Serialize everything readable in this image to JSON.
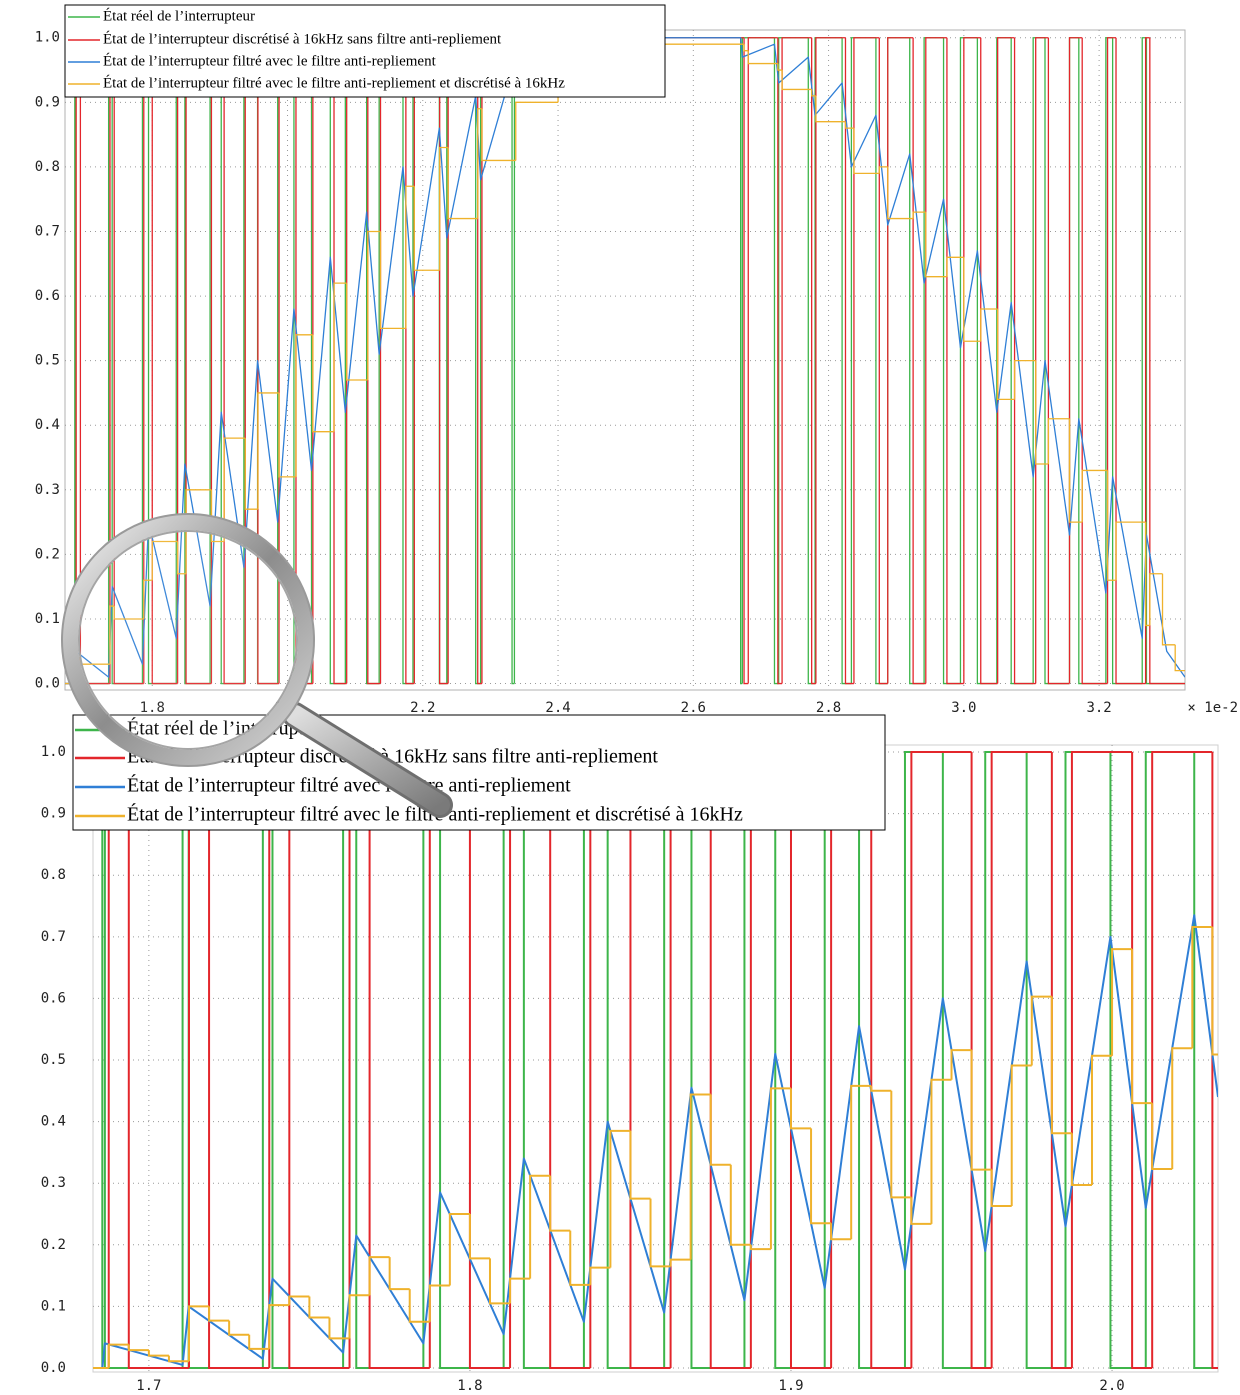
{
  "chart_data": [
    {
      "type": "line",
      "xlim": [
        1.671,
        3.327
      ],
      "xticks": [
        1.8,
        {
          "value": 2,
          "label": "2.0"
        },
        2.2,
        2.4,
        2.6,
        2.8,
        {
          "value": 3,
          "label": "3.0"
        },
        3.2
      ],
      "x_offset_label": "× 1e-2",
      "ylim": [
        -0.01,
        1.012
      ],
      "yticks": [
        {
          "value": 0,
          "label": "0.0"
        },
        0.1,
        0.2,
        0.3,
        0.4,
        0.5,
        0.6,
        0.7,
        0.8,
        0.9,
        {
          "value": 1,
          "label": "1.0"
        }
      ],
      "grid": true,
      "legend": "upper left",
      "series": [
        {
          "name": "État réel de l’interrupteur",
          "color": "#3db54a",
          "drawstyle": "steps-post",
          "x": [
            1.671,
            1.6855,
            1.687,
            1.7355,
            1.74075,
            1.7855,
            1.7945,
            1.8355,
            1.84825,
            1.8855,
            1.902,
            1.9355,
            1.95575,
            1.9855,
            2.0095,
            2.0355,
            2.06325,
            2.0855,
            2.117,
            2.1355,
            2.17075,
            2.1855,
            2.2245,
            2.2355,
            2.27825,
            2.2855,
            2.332,
            2.3355,
            2.67,
            2.6725,
            2.72,
            2.72625,
            2.77,
            2.78,
            2.82,
            2.83375,
            2.87,
            2.8875,
            2.92,
            2.94125,
            2.97,
            2.995,
            3.02,
            3.04875,
            3.07,
            3.1025,
            3.12,
            3.15625,
            3.17,
            3.21,
            3.22,
            3.26375,
            3.27
          ],
          "values": [
            0,
            1,
            0,
            1,
            0,
            1,
            0,
            1,
            0,
            1,
            0,
            1,
            0,
            1,
            0,
            1,
            0,
            1,
            0,
            1,
            0,
            1,
            0,
            1,
            0,
            1,
            0,
            1,
            0,
            1,
            0,
            1,
            0,
            1,
            0,
            1,
            0,
            1,
            0,
            1,
            0,
            1,
            0,
            1,
            0,
            1,
            0,
            1,
            0,
            1,
            0,
            1,
            0
          ]
        },
        {
          "name": "État de l’interrupteur discrétisé à 16kHz sans filtre anti-repliement",
          "color": "#e3262b",
          "drawstyle": "steps-post",
          "x": [
            1.671,
            1.6875,
            1.69375,
            1.7375,
            1.74375,
            1.7875,
            1.8,
            1.8375,
            1.85,
            1.8875,
            1.90625,
            1.9375,
            1.95625,
            1.9875,
            2.0125,
            2.0375,
            2.06875,
            2.0875,
            2.11875,
            2.1375,
            2.175,
            2.1875,
            2.225,
            2.2375,
            2.28125,
            2.2875,
            2.675,
            2.68125,
            2.725,
            2.73125,
            2.775,
            2.78125,
            2.825,
            2.8375,
            2.875,
            2.8875,
            2.925,
            2.94375,
            2.975,
            3.0,
            3.025,
            3.05,
            3.075,
            3.10625,
            3.125,
            3.15625,
            3.175,
            3.2125,
            3.225,
            3.26875,
            3.275
          ],
          "values": [
            0,
            1,
            0,
            1,
            0,
            1,
            0,
            1,
            0,
            1,
            0,
            1,
            0,
            1,
            0,
            1,
            0,
            1,
            0,
            1,
            0,
            1,
            0,
            1,
            0,
            1,
            0,
            1,
            0,
            1,
            0,
            1,
            0,
            1,
            0,
            1,
            0,
            1,
            0,
            1,
            0,
            1,
            0,
            1,
            0,
            1,
            0,
            1,
            0,
            1,
            0
          ]
        },
        {
          "name": "État de l’interrupteur filtré avec le filtre anti-repliement",
          "color": "#2f7fd6",
          "x": [
            1.671,
            1.6855,
            1.687,
            1.7355,
            1.74075,
            1.7855,
            1.7945,
            1.8355,
            1.84825,
            1.8855,
            1.902,
            1.9355,
            1.95575,
            1.9855,
            2.0095,
            2.0355,
            2.06325,
            2.0855,
            2.117,
            2.1355,
            2.17075,
            2.1855,
            2.2245,
            2.2355,
            2.27825,
            2.2855,
            2.332,
            2.3355,
            2.45,
            2.67,
            2.6725,
            2.72,
            2.72625,
            2.77,
            2.78,
            2.82,
            2.83375,
            2.87,
            2.8875,
            2.92,
            2.94125,
            2.97,
            2.995,
            3.02,
            3.04875,
            3.07,
            3.1025,
            3.12,
            3.15625,
            3.17,
            3.21,
            3.22,
            3.26375,
            3.27,
            3.3,
            3.327
          ],
          "values": [
            0,
            0,
            0.05,
            0.01,
            0.15,
            0.03,
            0.25,
            0.07,
            0.34,
            0.12,
            0.42,
            0.18,
            0.5,
            0.25,
            0.58,
            0.33,
            0.66,
            0.42,
            0.73,
            0.51,
            0.8,
            0.6,
            0.86,
            0.69,
            0.91,
            0.78,
            0.95,
            0.94,
            1,
            1,
            0.97,
            0.99,
            0.93,
            0.97,
            0.88,
            0.93,
            0.8,
            0.88,
            0.71,
            0.82,
            0.62,
            0.75,
            0.52,
            0.67,
            0.42,
            0.59,
            0.32,
            0.5,
            0.23,
            0.41,
            0.14,
            0.32,
            0.07,
            0.23,
            0.05,
            0.01
          ]
        },
        {
          "name": "État de l’interrupteur filtré avec le filtre anti-repliement et discrétisé à 16kHz",
          "color": "#efb22c",
          "drawstyle": "steps-post",
          "x": [
            1.671,
            1.6875,
            1.69375,
            1.7375,
            1.74375,
            1.7875,
            1.8,
            1.8375,
            1.85,
            1.8875,
            1.90625,
            1.9375,
            1.95625,
            1.9875,
            2.0125,
            2.0375,
            2.06875,
            2.0875,
            2.11875,
            2.1375,
            2.175,
            2.1875,
            2.225,
            2.2375,
            2.28125,
            2.2875,
            2.3375,
            2.4,
            2.675,
            2.68125,
            2.725,
            2.73125,
            2.775,
            2.78125,
            2.825,
            2.8375,
            2.875,
            2.8875,
            2.925,
            2.94375,
            2.975,
            3.0,
            3.025,
            3.05,
            3.075,
            3.10625,
            3.125,
            3.15625,
            3.175,
            3.2125,
            3.225,
            3.26875,
            3.275,
            3.29375,
            3.3125
          ],
          "values": [
            0,
            0.04,
            0.03,
            0.12,
            0.1,
            0.16,
            0.22,
            0.17,
            0.3,
            0.22,
            0.38,
            0.27,
            0.45,
            0.32,
            0.54,
            0.39,
            0.62,
            0.47,
            0.7,
            0.55,
            0.77,
            0.64,
            0.83,
            0.72,
            0.89,
            0.81,
            0.9,
            0.99,
            0.98,
            0.96,
            0.95,
            0.92,
            0.91,
            0.87,
            0.86,
            0.79,
            0.8,
            0.72,
            0.73,
            0.63,
            0.66,
            0.53,
            0.58,
            0.44,
            0.5,
            0.34,
            0.41,
            0.25,
            0.33,
            0.16,
            0.25,
            0.09,
            0.17,
            0.06,
            0.02
          ]
        }
      ]
    },
    {
      "type": "line",
      "xlim": [
        1.6826,
        2.033
      ],
      "xticks": [
        1.7,
        1.8,
        1.9,
        {
          "value": 2,
          "label": "2.0"
        }
      ],
      "ylim": [
        -0.0065,
        1.0114
      ],
      "yticks": [
        {
          "value": 0,
          "label": "0.0"
        },
        0.1,
        0.2,
        0.3,
        0.4,
        0.5,
        0.6,
        0.7,
        0.8,
        0.9,
        {
          "value": 1,
          "label": "1.0"
        }
      ],
      "grid": true,
      "legend": "upper left",
      "series": [
        {
          "name": "État réel de l’interrupteur",
          "color": "#3db54a",
          "drawstyle": "steps-post",
          "x": [
            1.6826,
            1.6855,
            1.6863,
            1.7105,
            1.7124,
            1.7355,
            1.7385,
            1.7605,
            1.7646,
            1.7855,
            1.7907,
            1.8105,
            1.8168,
            1.8355,
            1.8429,
            1.8605,
            1.869,
            1.8855,
            1.8951,
            1.9105,
            1.9212,
            1.9355,
            1.9473,
            1.9605,
            1.9734,
            1.9855,
            1.9995,
            2.0105,
            2.0256
          ],
          "values": [
            0,
            1,
            0,
            1,
            0,
            1,
            0,
            1,
            0,
            1,
            0,
            1,
            0,
            1,
            0,
            1,
            0,
            1,
            0,
            1,
            0,
            1,
            0,
            1,
            0,
            1,
            0,
            1,
            0
          ]
        },
        {
          "name": "État de l’interrupteur discrétisé à 16kHz sans filtre anti-repliement",
          "color": "#e3262b",
          "drawstyle": "steps-post",
          "x": [
            1.6826,
            1.6875,
            1.69375,
            1.7125,
            1.71875,
            1.7375,
            1.74375,
            1.7625,
            1.76875,
            1.7875,
            1.8,
            1.8125,
            1.825,
            1.8375,
            1.85,
            1.8625,
            1.875,
            1.8875,
            1.9,
            1.9125,
            1.925,
            1.9375,
            1.95625,
            1.9625,
            1.98125,
            1.9875,
            2.00625,
            2.0125,
            2.03125
          ],
          "values": [
            0,
            1,
            0,
            1,
            0,
            1,
            0,
            1,
            0,
            1,
            0,
            1,
            0,
            1,
            0,
            1,
            0,
            1,
            0,
            1,
            0,
            1,
            0,
            1,
            0,
            1,
            0,
            1,
            0
          ]
        },
        {
          "name": "État de l’interrupteur filtré avec le filtre anti-repliement",
          "color": "#2f7fd6",
          "x": [
            1.6826,
            1.6855,
            1.6863,
            1.7105,
            1.7124,
            1.7355,
            1.7385,
            1.7605,
            1.7646,
            1.7855,
            1.7907,
            1.8105,
            1.8168,
            1.8355,
            1.8429,
            1.8605,
            1.869,
            1.8855,
            1.8951,
            1.9105,
            1.9212,
            1.9355,
            1.9473,
            1.9605,
            1.9734,
            1.9855,
            1.9995,
            2.0105,
            2.0256,
            2.033
          ],
          "values": [
            0,
            0,
            0.04,
            0.005,
            0.1,
            0.015,
            0.145,
            0.025,
            0.215,
            0.04,
            0.285,
            0.055,
            0.34,
            0.075,
            0.4,
            0.09,
            0.455,
            0.11,
            0.51,
            0.13,
            0.555,
            0.16,
            0.6,
            0.19,
            0.66,
            0.23,
            0.7,
            0.26,
            0.735,
            0.44
          ]
        },
        {
          "name": "État de l’interrupteur filtré avec le filtre anti-repliement et discrétisé à 16kHz",
          "color": "#efb22c",
          "drawstyle": "steps-post",
          "x": [
            1.6826,
            1.6875,
            1.69375,
            1.7,
            1.70625,
            1.7125,
            1.71875,
            1.725,
            1.73125,
            1.7375,
            1.74375,
            1.75,
            1.75625,
            1.7625,
            1.76875,
            1.775,
            1.78125,
            1.7875,
            1.79375,
            1.8,
            1.80625,
            1.8125,
            1.81875,
            1.825,
            1.83125,
            1.8375,
            1.84375,
            1.85,
            1.85625,
            1.8625,
            1.86875,
            1.875,
            1.88125,
            1.8875,
            1.89375,
            1.9,
            1.90625,
            1.9125,
            1.91875,
            1.925,
            1.93125,
            1.9375,
            1.94375,
            1.95,
            1.95625,
            1.9625,
            1.96875,
            1.975,
            1.98125,
            1.9875,
            1.99375,
            2.0,
            2.00625,
            2.0125,
            2.01875,
            2.025,
            2.03125
          ],
          "values": [
            0,
            0.038,
            0.029,
            0.02,
            0.011,
            0.1,
            0.077,
            0.054,
            0.031,
            0.102,
            0.116,
            0.082,
            0.048,
            0.118,
            0.18,
            0.128,
            0.075,
            0.134,
            0.25,
            0.178,
            0.105,
            0.145,
            0.312,
            0.223,
            0.135,
            0.163,
            0.385,
            0.275,
            0.165,
            0.176,
            0.444,
            0.33,
            0.2,
            0.193,
            0.454,
            0.389,
            0.235,
            0.209,
            0.458,
            0.45,
            0.277,
            0.234,
            0.468,
            0.516,
            0.322,
            0.263,
            0.491,
            0.603,
            0.381,
            0.297,
            0.507,
            0.68,
            0.43,
            0.323,
            0.519,
            0.716,
            0.509
          ]
        }
      ]
    }
  ]
}
